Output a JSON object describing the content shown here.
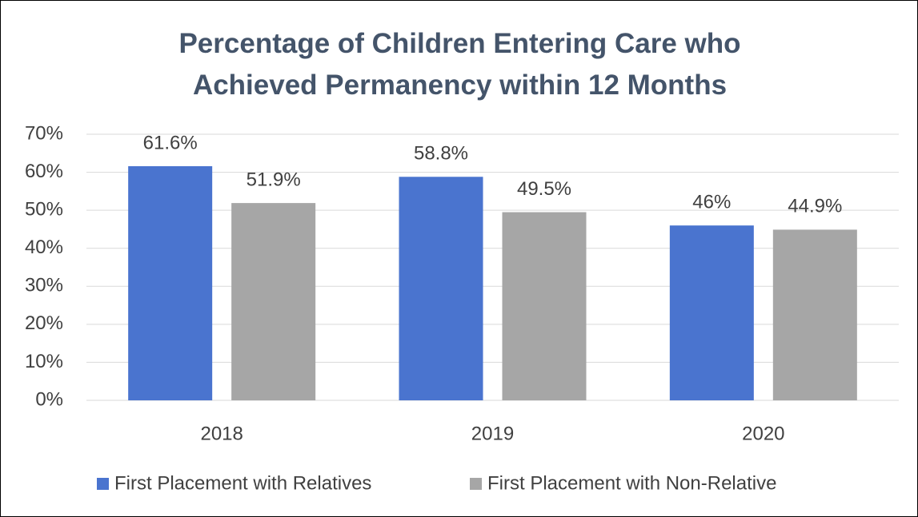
{
  "chart_data": {
    "type": "bar",
    "title": "Percentage of Children Entering Care who Achieved Permanency within 12 Months",
    "categories": [
      "2018",
      "2019",
      "2020"
    ],
    "series": [
      {
        "name": "First Placement with Relatives",
        "color": "#4a74cf",
        "values": [
          61.6,
          58.8,
          46
        ],
        "value_labels": [
          "61.6%",
          "58.8%",
          "46%"
        ]
      },
      {
        "name": "First Placement with Non-Relative",
        "color": "#a6a6a6",
        "values": [
          51.9,
          49.5,
          44.9
        ],
        "value_labels": [
          "51.9%",
          "49.5%",
          "44.9%"
        ]
      }
    ],
    "ylim": [
      0,
      70
    ],
    "yticks": [
      {
        "value": 0,
        "label": "0%"
      },
      {
        "value": 10,
        "label": "10%"
      },
      {
        "value": 20,
        "label": "20%"
      },
      {
        "value": 30,
        "label": "30%"
      },
      {
        "value": 40,
        "label": "40%"
      },
      {
        "value": 50,
        "label": "50%"
      },
      {
        "value": 60,
        "label": "60%"
      },
      {
        "value": 70,
        "label": "70%"
      }
    ],
    "grid": true,
    "legend": "bottom"
  }
}
